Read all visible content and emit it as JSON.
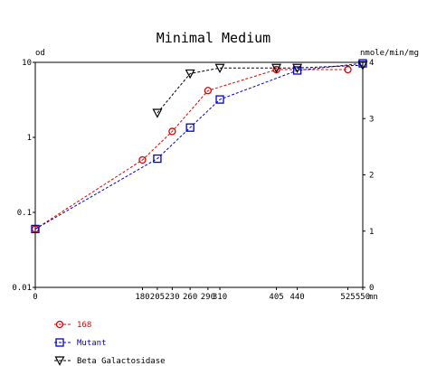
{
  "chart_data": {
    "type": "line",
    "title": "Minimal Medium",
    "x_unit": "mn",
    "left_axis": {
      "label": "od",
      "scale": "log",
      "range": [
        0.01,
        10
      ],
      "ticks": [
        "10",
        "1",
        "0.1",
        "0.01"
      ]
    },
    "right_axis": {
      "label": "nmole/min/mg",
      "scale": "linear",
      "range": [
        0,
        4
      ],
      "ticks": [
        "4",
        "3",
        "2",
        "1",
        "0"
      ]
    },
    "x_range": [
      0,
      550
    ],
    "x_ticks": [
      0,
      180,
      205,
      230,
      260,
      290,
      310,
      405,
      440,
      525,
      550
    ],
    "grid": false,
    "legend_position": "bottom-left",
    "series": [
      {
        "name": "168",
        "axis": "left",
        "color": "#e00000",
        "marker": "circle",
        "dash": true,
        "x": [
          0,
          180,
          230,
          290,
          405,
          525
        ],
        "y": [
          0.06,
          0.5,
          1.2,
          4.2,
          8.0,
          8.0
        ]
      },
      {
        "name": "Mutant",
        "axis": "left",
        "color": "#0000d0",
        "marker": "square",
        "dash": true,
        "x": [
          0,
          205,
          260,
          310,
          440,
          550
        ],
        "y": [
          0.06,
          0.52,
          1.35,
          3.2,
          7.8,
          9.7
        ]
      },
      {
        "name": "Beta Galactosidase",
        "axis": "right",
        "color": "#000000",
        "marker": "triangle-down",
        "dash": true,
        "x": [
          205,
          260,
          310,
          405,
          440,
          550
        ],
        "y": [
          3.1,
          3.8,
          3.9,
          3.9,
          3.9,
          3.95
        ]
      }
    ]
  }
}
